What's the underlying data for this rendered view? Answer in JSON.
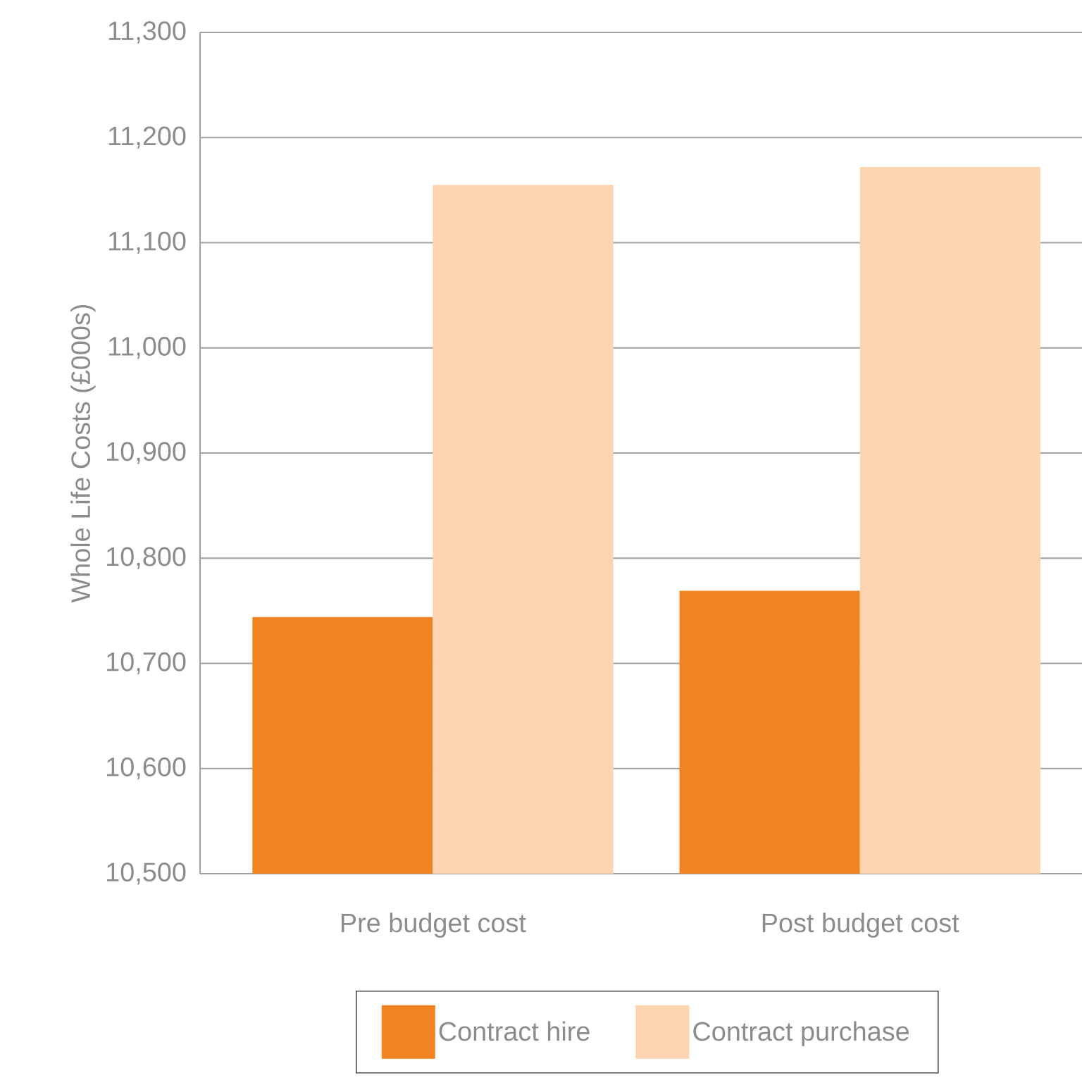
{
  "chart_data": {
    "type": "bar",
    "ylabel": "Whole Life Costs (£000s)",
    "categories": [
      "Pre budget cost",
      "Post budget cost"
    ],
    "series": [
      {
        "name": "Contract hire",
        "color": "#f28322",
        "values": [
          10744,
          10769
        ]
      },
      {
        "name": "Contract purchase",
        "color": "#fcd5b0",
        "values": [
          11155,
          11172
        ]
      }
    ],
    "ylim": [
      10500,
      11300
    ],
    "yticks": [
      {
        "value": 10500,
        "label": "10,500"
      },
      {
        "value": 10600,
        "label": "10,600"
      },
      {
        "value": 10700,
        "label": "10,700"
      },
      {
        "value": 10800,
        "label": "10,800"
      },
      {
        "value": 10900,
        "label": "10,900"
      },
      {
        "value": 11000,
        "label": "11,000"
      },
      {
        "value": 11100,
        "label": "11,100"
      },
      {
        "value": 11200,
        "label": "11,200"
      },
      {
        "value": 11300,
        "label": "11,300"
      }
    ],
    "grid": "y",
    "legend": "bottom"
  }
}
